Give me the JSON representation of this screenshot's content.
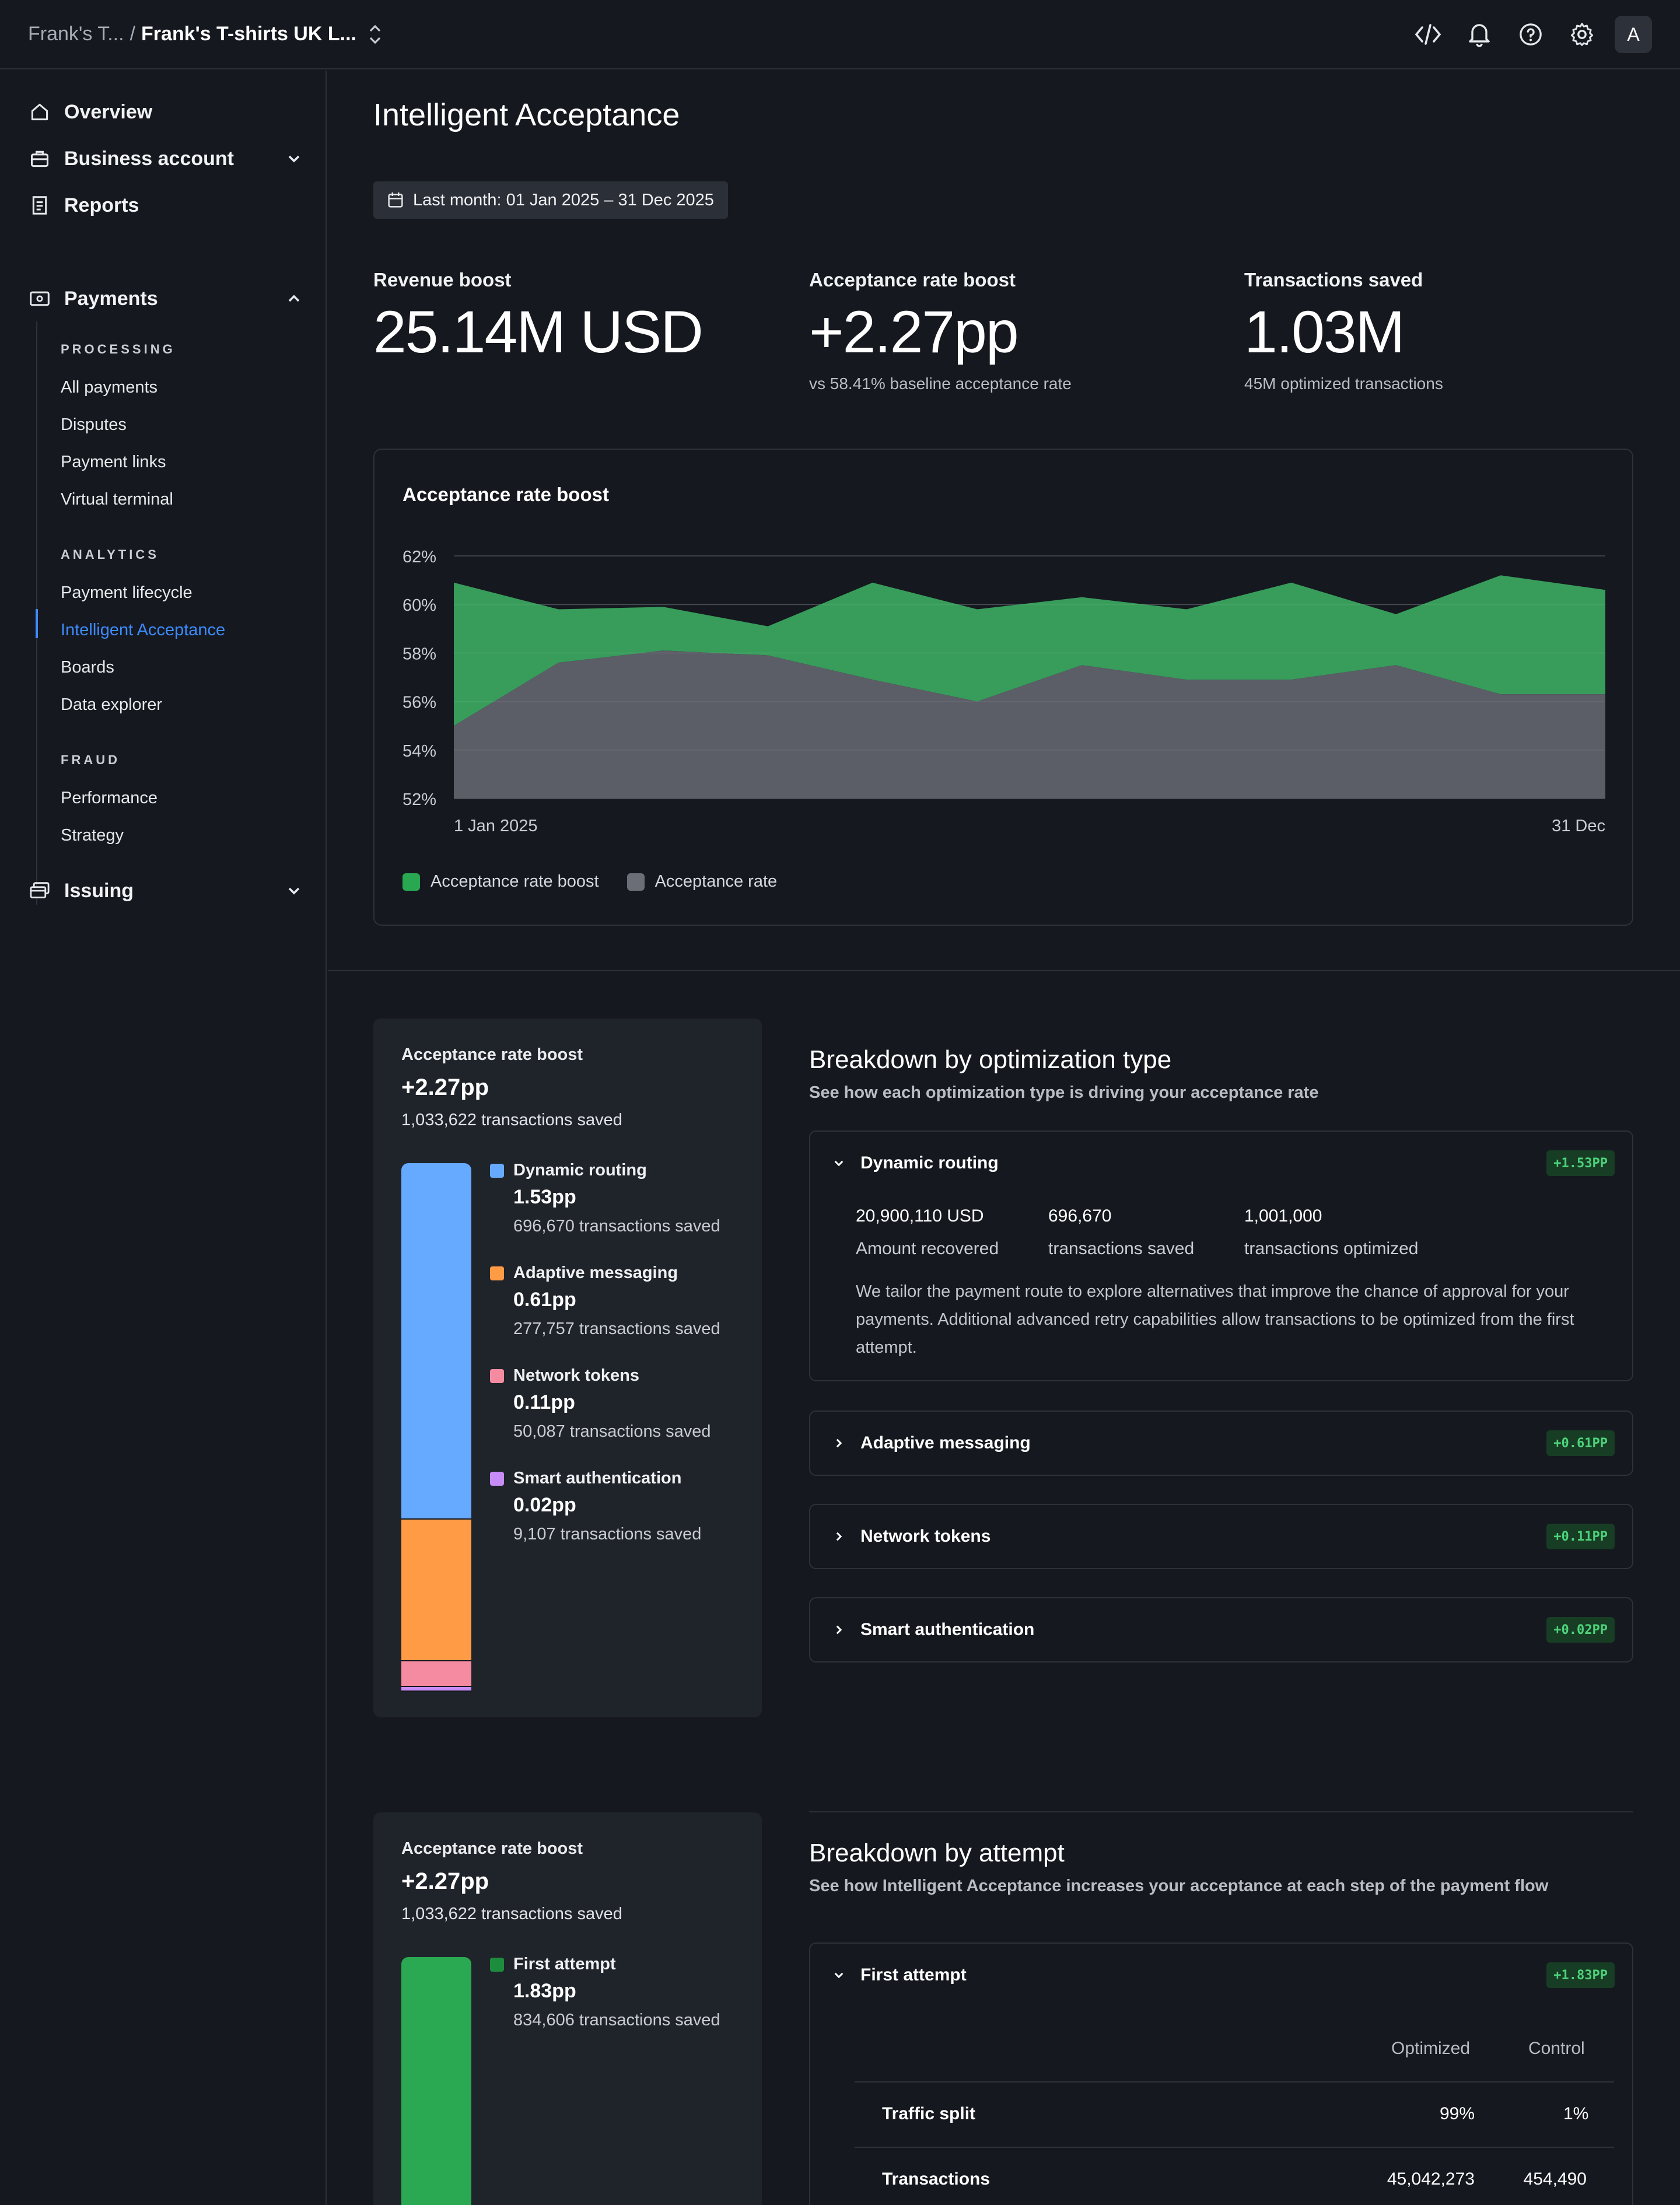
{
  "topbar": {
    "breadcrumb_parent": "Frank's T...",
    "breadcrumb_sep": "/",
    "breadcrumb_current": "Frank's T-shirts UK L...",
    "avatar_initial": "A",
    "icons": [
      "code-icon",
      "bell-icon",
      "help-icon",
      "gear-icon"
    ]
  },
  "sidebar": {
    "overview": "Overview",
    "business_account": "Business account",
    "reports": "Reports",
    "payments": "Payments",
    "processing_label": "PROCESSING",
    "processing_items": [
      "All payments",
      "Disputes",
      "Payment links",
      "Virtual terminal"
    ],
    "analytics_label": "ANALYTICS",
    "analytics_items": [
      "Payment lifecycle",
      "Intelligent Acceptance",
      "Boards",
      "Data explorer"
    ],
    "fraud_label": "FRAUD",
    "fraud_items": [
      "Performance",
      "Strategy"
    ],
    "issuing": "Issuing"
  },
  "main": {
    "title": "Intelligent Acceptance",
    "date_range": "Last month: 01 Jan 2025 – 31 Dec 2025",
    "stats": [
      {
        "label": "Revenue boost",
        "value": "25.14M USD",
        "sub": ""
      },
      {
        "label": "Acceptance rate boost",
        "value": "+2.27pp",
        "sub": "vs 58.41% baseline acceptance rate"
      },
      {
        "label": "Transactions saved",
        "value": "1.03M",
        "sub": "45M optimized transactions"
      }
    ]
  },
  "chart_data": {
    "type": "area",
    "title": "Acceptance rate boost",
    "x_start_label": "1 Jan 2025",
    "x_end_label": "31 Dec",
    "y_ticks": [
      "62%",
      "60%",
      "58%",
      "56%",
      "54%",
      "52%"
    ],
    "ylim": [
      52,
      62
    ],
    "grid": true,
    "legend_position": "bottom-left",
    "series": [
      {
        "name": "Acceptance rate boost",
        "color": "#3aa35f",
        "values": [
          60.9,
          59.8,
          59.9,
          59.1,
          60.9,
          59.8,
          60.3,
          59.8,
          60.9,
          59.6,
          61.2,
          60.6
        ]
      },
      {
        "name": "Acceptance rate",
        "color": "#5b5e66",
        "values": [
          55.0,
          57.6,
          58.1,
          57.9,
          56.9,
          56.0,
          57.5,
          56.9,
          56.9,
          57.5,
          56.3,
          56.3
        ]
      }
    ]
  },
  "breakdown_type": {
    "panel_label": "Acceptance rate boost",
    "panel_value": "+2.27pp",
    "panel_sub": "1,033,622 transactions saved",
    "title": "Breakdown by optimization type",
    "subtitle": "See how each optimization type is driving your acceptance rate",
    "segments": [
      {
        "name": "Dynamic routing",
        "value": "1.53pp",
        "sub": "696,670 transactions saved",
        "color": "#66aaff",
        "pp": 1.53
      },
      {
        "name": "Adaptive messaging",
        "value": "0.61pp",
        "sub": "277,757 transactions saved",
        "color": "#ff9a45",
        "pp": 0.61
      },
      {
        "name": "Network tokens",
        "value": "0.11pp",
        "sub": "50,087 transactions saved",
        "color": "#f58ba0",
        "pp": 0.11
      },
      {
        "name": "Smart authentication",
        "value": "0.02pp",
        "sub": "9,107 transactions saved",
        "color": "#c78cf5",
        "pp": 0.02
      }
    ],
    "accordion": [
      {
        "name": "Dynamic routing",
        "badge": "+1.53PP",
        "expanded": true
      },
      {
        "name": "Adaptive messaging",
        "badge": "+0.61PP",
        "expanded": false
      },
      {
        "name": "Network tokens",
        "badge": "+0.11PP",
        "expanded": false
      },
      {
        "name": "Smart authentication",
        "badge": "+0.02PP",
        "expanded": false
      }
    ],
    "dynamic_routing": {
      "amount": "20,900,110 USD",
      "amount_label": "Amount recovered",
      "saved": "696,670",
      "saved_label": "transactions saved",
      "optimized": "1,001,000",
      "optimized_label": "transactions optimized",
      "description": "We tailor the payment route to explore alternatives that improve the chance of approval for your payments. Additional advanced retry capabilities allow transactions to be optimized from the first attempt."
    }
  },
  "breakdown_attempt": {
    "panel_label": "Acceptance rate boost",
    "panel_value": "+2.27pp",
    "panel_sub": "1,033,622 transactions saved",
    "title": "Breakdown by attempt",
    "subtitle": "See how Intelligent Acceptance increases your acceptance at each step of the payment flow",
    "first_attempt": {
      "name": "First attempt",
      "value": "1.83pp",
      "sub": "834,606 transactions saved",
      "color": "#2aa852",
      "badge": "+1.83PP"
    },
    "table": {
      "col_optimized": "Optimized",
      "col_control": "Control",
      "rows": [
        {
          "label": "Traffic split",
          "optimized": "99%",
          "control": "1%"
        },
        {
          "label": "Transactions",
          "optimized": "45,042,273",
          "control": "454,490"
        }
      ]
    }
  }
}
